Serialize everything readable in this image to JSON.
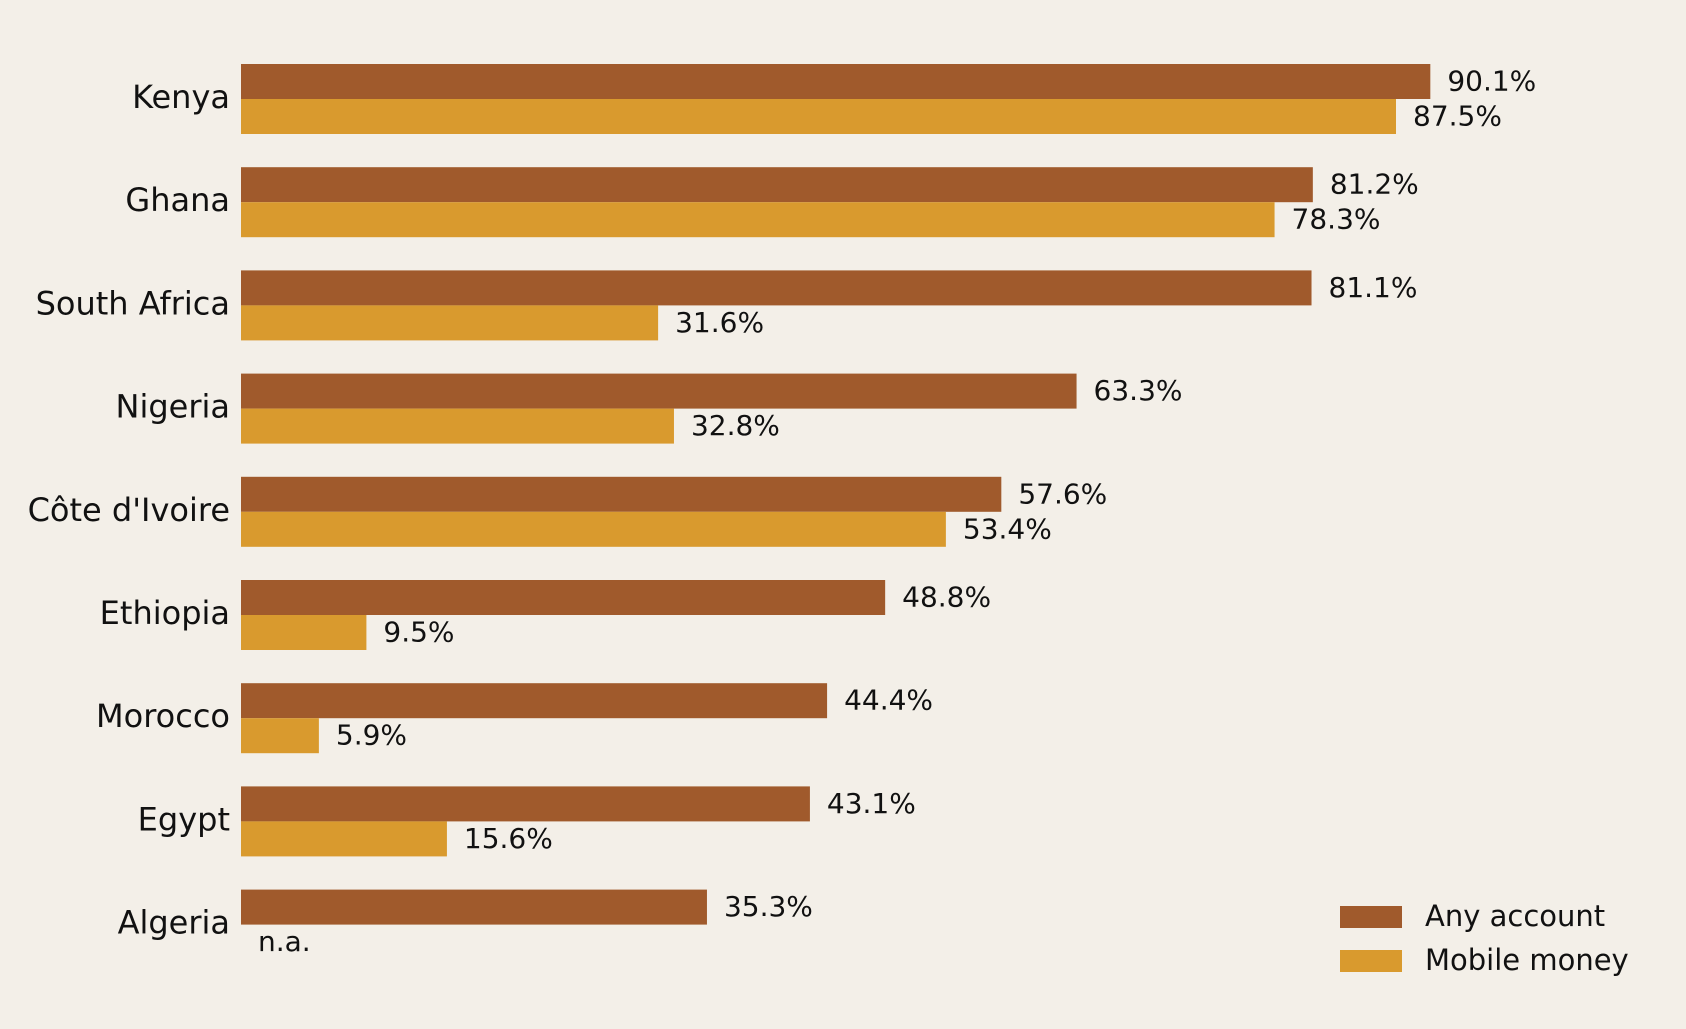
{
  "chart_data": {
    "type": "bar",
    "orientation": "horizontal",
    "title": "",
    "xlabel": "",
    "ylabel": "",
    "xlim": [
      0,
      100
    ],
    "grid": false,
    "legend_position": "bottom-right",
    "categories": [
      "Kenya",
      "Ghana",
      "South Africa",
      "Nigeria",
      "Côte d'Ivoire",
      "Ethiopia",
      "Morocco",
      "Egypt",
      "Algeria"
    ],
    "series": [
      {
        "name": "Any account",
        "color": "#a05a2c",
        "values": [
          90.1,
          81.2,
          81.1,
          63.3,
          57.6,
          48.8,
          44.4,
          43.1,
          35.3
        ],
        "labels": [
          "90.1%",
          "81.2%",
          "81.1%",
          "63.3%",
          "57.6%",
          "48.8%",
          "44.4%",
          "43.1%",
          "35.3%"
        ]
      },
      {
        "name": "Mobile money",
        "color": "#d99a2e",
        "values": [
          87.5,
          78.3,
          31.6,
          32.8,
          53.4,
          9.5,
          5.9,
          15.6,
          null
        ],
        "labels": [
          "87.5%",
          "78.3%",
          "31.6%",
          "32.8%",
          "53.4%",
          "9.5%",
          "5.9%",
          "15.6%",
          "n.a."
        ]
      }
    ]
  }
}
